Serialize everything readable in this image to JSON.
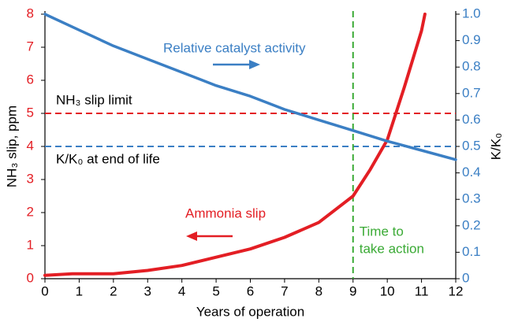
{
  "chart_data": {
    "type": "line",
    "x_label": "Years of operation",
    "y_label": "NH₃ slip, ppm",
    "y2_label": "K/K₀",
    "xlim": [
      0,
      12
    ],
    "xticks": [
      0,
      1,
      2,
      3,
      4,
      5,
      6,
      7,
      8,
      9,
      10,
      11,
      12
    ],
    "ylim": [
      0,
      8
    ],
    "yticks": [
      0,
      1,
      2,
      3,
      4,
      5,
      6,
      7,
      8
    ],
    "y2lim": [
      0,
      1
    ],
    "y2ticks": [
      0,
      0.1,
      0.2,
      0.3,
      0.4,
      0.5,
      0.6,
      0.7,
      0.8,
      0.9,
      {
        "value": 1,
        "label": "1.0"
      }
    ],
    "series": [
      {
        "name": "Ammonia slip",
        "color": "#e31e24",
        "axis": "y",
        "x": [
          0,
          0.8,
          2,
          3,
          4,
          5,
          6,
          7,
          8,
          9,
          9.5,
          10,
          10.5,
          11,
          11.1
        ],
        "values": [
          0.1,
          0.15,
          0.15,
          0.25,
          0.4,
          0.65,
          0.9,
          1.25,
          1.7,
          2.5,
          3.3,
          4.2,
          5.8,
          7.5,
          8
        ]
      },
      {
        "name": "Relative catalyst activity",
        "color": "#3b7fc4",
        "axis": "y2",
        "x": [
          0,
          1,
          2,
          3,
          4,
          5,
          6,
          7,
          8,
          9,
          10,
          11,
          12
        ],
        "values": [
          1.0,
          0.94,
          0.88,
          0.83,
          0.78,
          0.73,
          0.69,
          0.64,
          0.6,
          0.56,
          0.52,
          0.485,
          0.45
        ]
      }
    ],
    "reference_lines": [
      {
        "label": "NH₃ slip limit",
        "value": 5,
        "axis": "y",
        "color": "#e31e24"
      },
      {
        "label": "K/K₀ at end of life",
        "value": 0.5,
        "axis": "y2",
        "color": "#3b7fc4"
      }
    ],
    "vertical_line": {
      "value": 9,
      "label": [
        "Time to",
        "take action"
      ],
      "color": "#3aaa35"
    },
    "y_color": "#e31e24",
    "y2_color": "#3b7fc4"
  }
}
